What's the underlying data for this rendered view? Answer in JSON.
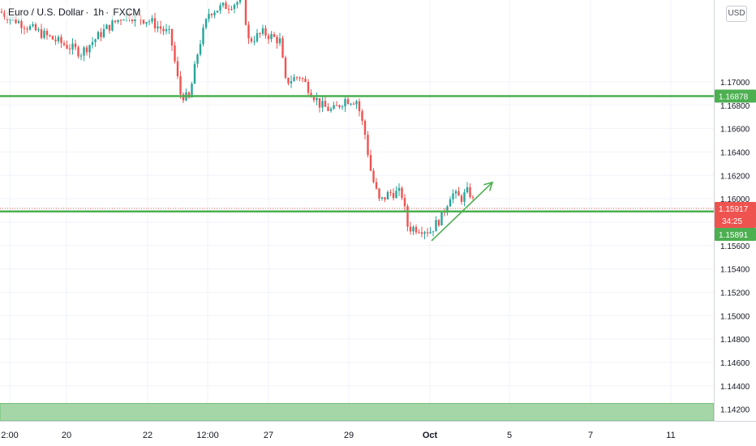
{
  "header": {
    "symbol": "Euro / U.S. Dollar",
    "interval": "1h",
    "source": "FXCM",
    "currency_badge": "USD"
  },
  "colors": {
    "up": "#26a69a",
    "down": "#ef5350",
    "level_line": "#4caf50",
    "zone": "#a5d6a7",
    "grid": "#f0f3fa",
    "current_price_bg": "#ef5350",
    "level_tag_bg": "#4caf50"
  },
  "chart_data": {
    "type": "candlestick",
    "ylim": [
      1.141,
      1.177
    ],
    "y_ticks": [
      "1.17000",
      "1.16800",
      "1.16600",
      "1.16400",
      "1.16200",
      "1.16000",
      "1.15800",
      "1.15600",
      "1.15400",
      "1.15200",
      "1.15000",
      "1.14800",
      "1.14600",
      "1.14400",
      "1.14200"
    ],
    "x_ticks": [
      {
        "label": "2:00",
        "bold": false
      },
      {
        "label": "20",
        "bold": false
      },
      {
        "label": "22",
        "bold": false
      },
      {
        "label": "12:00",
        "bold": false
      },
      {
        "label": "27",
        "bold": false
      },
      {
        "label": "29",
        "bold": false
      },
      {
        "label": "Oct",
        "bold": true
      },
      {
        "label": "5",
        "bold": false
      },
      {
        "label": "7",
        "bold": false
      },
      {
        "label": "11",
        "bold": false
      }
    ],
    "horizontal_levels": [
      {
        "price": 1.16878,
        "label": "1.16878"
      },
      {
        "price": 1.15891,
        "label": "1.15891"
      }
    ],
    "current_price": {
      "price": 1.15917,
      "label": "1.15917",
      "countdown": "34:25"
    },
    "support_zone": [
      1.141,
      1.1425
    ],
    "series_path": [
      [
        0,
        1.176
      ],
      [
        40,
        1.1745
      ],
      [
        70,
        1.1735
      ],
      [
        100,
        1.1725
      ],
      [
        130,
        1.1745
      ],
      [
        155,
        1.1758
      ],
      [
        185,
        1.1752
      ],
      [
        210,
        1.174
      ],
      [
        222,
        1.169
      ],
      [
        233,
        1.1685
      ],
      [
        245,
        1.173
      ],
      [
        258,
        1.176
      ],
      [
        300,
        1.177
      ],
      [
        306,
        1.1735
      ],
      [
        325,
        1.1742
      ],
      [
        345,
        1.1735
      ],
      [
        352,
        1.17
      ],
      [
        370,
        1.1705
      ],
      [
        385,
        1.169
      ],
      [
        395,
        1.168
      ],
      [
        410,
        1.1675
      ],
      [
        425,
        1.1685
      ],
      [
        440,
        1.1684
      ],
      [
        450,
        1.1655
      ],
      [
        458,
        1.162
      ],
      [
        468,
        1.1597
      ],
      [
        480,
        1.1605
      ],
      [
        495,
        1.1605
      ],
      [
        503,
        1.1575
      ],
      [
        518,
        1.1575
      ],
      [
        530,
        1.1572
      ],
      [
        545,
        1.1585
      ],
      [
        556,
        1.1605
      ],
      [
        568,
        1.16
      ],
      [
        578,
        1.1607
      ],
      [
        586,
        1.1593
      ]
    ],
    "trend_arrow": {
      "start": [
        1.1564,
        532
      ],
      "end": [
        1.1614,
        607
      ]
    }
  }
}
